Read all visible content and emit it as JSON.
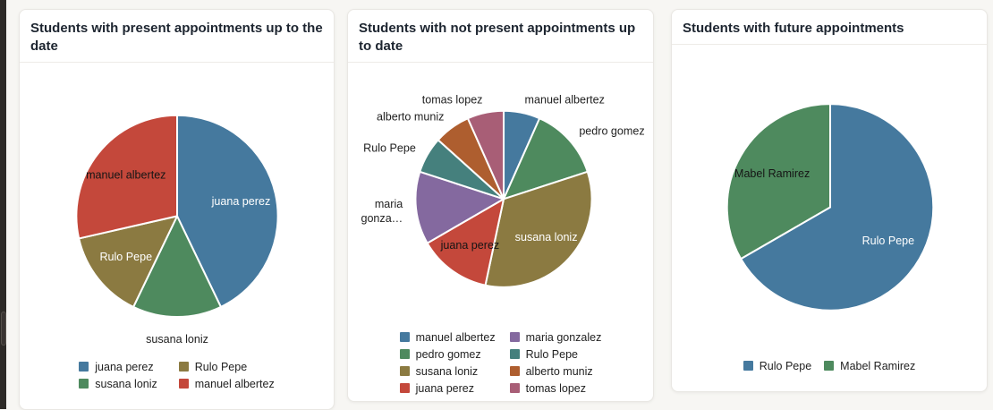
{
  "page": {
    "background": "#f7f6f3",
    "sidebar_rail_color": "#2d2a27",
    "card_background": "#ffffff",
    "title_color": "#1d2530"
  },
  "chart_data": [
    {
      "type": "pie",
      "title": "Students with present appointments up to the date",
      "legend_position": "bottom",
      "legend_rows": 2,
      "total": 7,
      "slices": [
        {
          "label": "juana perez",
          "value": 3,
          "color": "#45799E",
          "label_placement": "inside",
          "label_color": "#ffffff"
        },
        {
          "label": "susana loniz",
          "value": 1,
          "color": "#4E8A5E",
          "label_placement": "outside",
          "label_color": "#222222"
        },
        {
          "label": "Rulo Pepe",
          "value": 1,
          "color": "#8B7A41",
          "label_placement": "inside",
          "label_color": "#ffffff"
        },
        {
          "label": "manuel albertez",
          "value": 2,
          "color": "#C4483B",
          "label_placement": "inside",
          "label_color": "#151515"
        }
      ]
    },
    {
      "type": "pie",
      "title": "Students with not present appointments up to date",
      "legend_position": "bottom",
      "legend_rows": 4,
      "total": 15,
      "slices": [
        {
          "label": "manuel albertez",
          "value": 1,
          "color": "#45799E",
          "label_placement": "outside",
          "label_color": "#222222"
        },
        {
          "label": "pedro gomez",
          "value": 2,
          "color": "#4E8A5E",
          "label_placement": "outside",
          "label_color": "#222222"
        },
        {
          "label": "susana loniz",
          "value": 5,
          "color": "#8B7A41",
          "label_placement": "inside",
          "label_color": "#ffffff"
        },
        {
          "label": "juana perez",
          "value": 2,
          "color": "#C4483B",
          "label_placement": "inside",
          "label_color": "#151515"
        },
        {
          "label": "maria gonzalez",
          "value": 2,
          "color": "#84699F",
          "label_placement": "outside",
          "label_color": "#222222",
          "label_lines": [
            "maria",
            "gonza…"
          ]
        },
        {
          "label": "Rulo Pepe",
          "value": 1,
          "color": "#45807D",
          "label_placement": "outside",
          "label_color": "#222222"
        },
        {
          "label": "alberto muniz",
          "value": 1,
          "color": "#AE5E2F",
          "label_placement": "outside",
          "label_color": "#222222"
        },
        {
          "label": "tomas lopez",
          "value": 1,
          "color": "#A85E76",
          "label_placement": "outside",
          "label_color": "#222222"
        }
      ]
    },
    {
      "type": "pie",
      "title": "Students with future appointments",
      "legend_position": "bottom",
      "legend_rows": 1,
      "total": 3,
      "slices": [
        {
          "label": "Rulo Pepe",
          "value": 2,
          "color": "#45799E",
          "label_placement": "inside",
          "label_color": "#ffffff"
        },
        {
          "label": "Mabel Ramirez",
          "value": 1,
          "color": "#4E8A5E",
          "label_placement": "inside",
          "label_color": "#151515"
        }
      ]
    }
  ]
}
